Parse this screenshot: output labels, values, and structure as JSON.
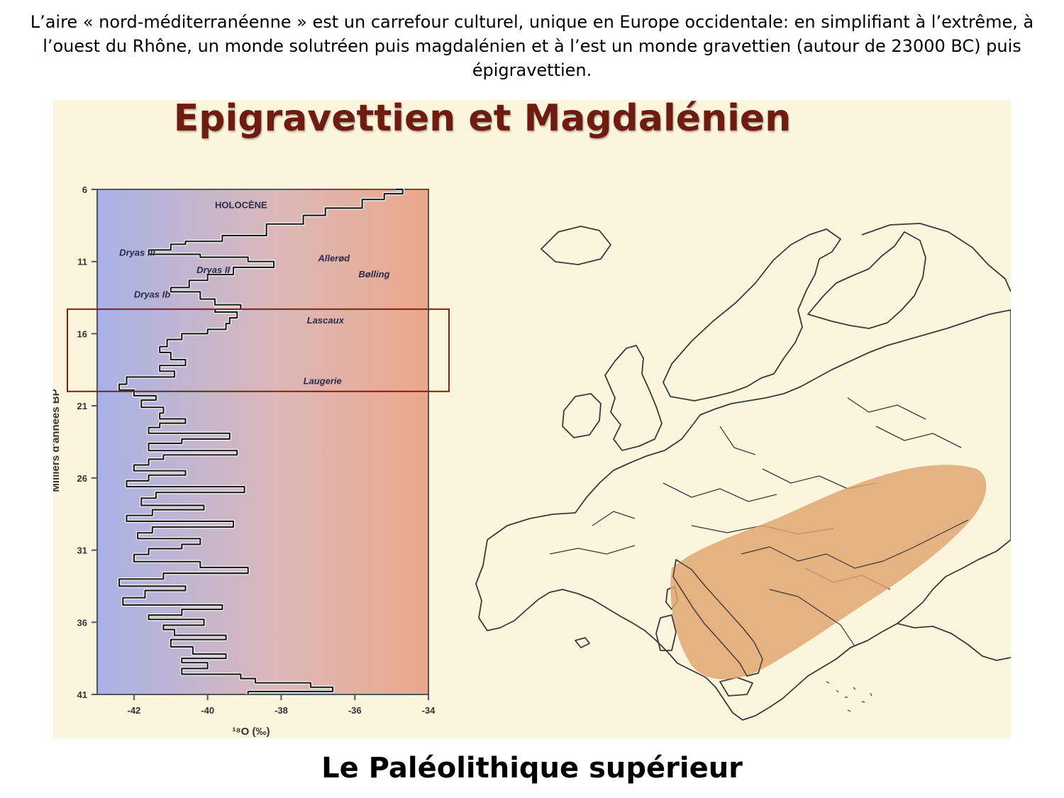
{
  "intro_text": "L’aire « nord-méditerranéenne » est un carrefour culturel, unique en Europe occidentale: en simplifiant à l’extrême, à l’ouest du Rhône, un monde solutréen puis magdalénien et à l’est un monde gravettien (autour de 23000 BC)  puis épigravettien.",
  "slide_title": "Epigravettien et Magdalénien",
  "caption": "Le Paléolithique supérieur",
  "colors": {
    "title": "#6e1c12",
    "zone": "#e0a36c",
    "cold": "#a8b2e8",
    "warm": "#eba88a",
    "slide_bg": "#faf5dc"
  },
  "chart_data": {
    "type": "line",
    "xlabel": "¹⁸O (‰)",
    "ylabel": "Milliers d'années BP",
    "x_ticks": [
      -42,
      -40,
      -38,
      -36,
      -34
    ],
    "y_ticks": [
      6,
      11,
      16,
      21,
      26,
      31,
      36,
      41
    ],
    "xlim": [
      -43,
      -34
    ],
    "ylim": [
      6,
      41
    ],
    "y_inverted": true,
    "annotations": [
      {
        "text": "HOLOCÈNE",
        "x": -39.8,
        "y": 7.3
      },
      {
        "text": "Dryas III",
        "x": -42.4,
        "y": 10.6
      },
      {
        "text": "Allerød",
        "x": -37.0,
        "y": 11.0
      },
      {
        "text": "Dryas II",
        "x": -40.3,
        "y": 11.8
      },
      {
        "text": "Bølling",
        "x": -35.9,
        "y": 12.1
      },
      {
        "text": "Dryas Ib",
        "x": -42.0,
        "y": 13.5
      },
      {
        "text": "Lascaux",
        "x": -37.3,
        "y": 15.3
      },
      {
        "text": "Laugerie",
        "x": -37.4,
        "y": 19.5
      }
    ],
    "highlight": {
      "y_from": 14.3,
      "y_to": 20.0
    },
    "series": [
      {
        "values_xy": [
          [
            -34.9,
            6.0
          ],
          [
            -34.7,
            6.3
          ],
          [
            -35.2,
            6.7
          ],
          [
            -35.8,
            7.3
          ],
          [
            -36.8,
            7.8
          ],
          [
            -37.4,
            8.4
          ],
          [
            -38.4,
            9.2
          ],
          [
            -39.6,
            9.6
          ],
          [
            -40.6,
            9.8
          ],
          [
            -41.0,
            10.2
          ],
          [
            -41.6,
            10.5
          ],
          [
            -40.2,
            10.7
          ],
          [
            -38.9,
            11.0
          ],
          [
            -38.2,
            11.4
          ],
          [
            -39.3,
            11.9
          ],
          [
            -40.0,
            12.3
          ],
          [
            -40.5,
            12.8
          ],
          [
            -41.0,
            13.1
          ],
          [
            -40.2,
            13.6
          ],
          [
            -39.8,
            14.0
          ],
          [
            -39.1,
            14.3
          ],
          [
            -39.8,
            14.5
          ],
          [
            -39.2,
            14.9
          ],
          [
            -39.4,
            15.3
          ],
          [
            -39.5,
            15.7
          ],
          [
            -40.0,
            16.0
          ],
          [
            -40.7,
            16.4
          ],
          [
            -41.1,
            16.9
          ],
          [
            -41.3,
            17.3
          ],
          [
            -41.0,
            17.8
          ],
          [
            -40.6,
            18.2
          ],
          [
            -41.3,
            18.6
          ],
          [
            -40.9,
            19.0
          ],
          [
            -42.2,
            19.5
          ],
          [
            -42.4,
            19.9
          ],
          [
            -42.0,
            20.3
          ],
          [
            -41.4,
            20.6
          ],
          [
            -41.8,
            21.1
          ],
          [
            -41.2,
            21.5
          ],
          [
            -41.3,
            21.9
          ],
          [
            -40.6,
            22.2
          ],
          [
            -41.3,
            22.5
          ],
          [
            -41.6,
            22.9
          ],
          [
            -39.4,
            23.3
          ],
          [
            -40.7,
            23.6
          ],
          [
            -41.6,
            24.1
          ],
          [
            -39.2,
            24.4
          ],
          [
            -41.2,
            24.7
          ],
          [
            -41.6,
            25.1
          ],
          [
            -42.0,
            25.5
          ],
          [
            -40.6,
            25.8
          ],
          [
            -41.6,
            26.2
          ],
          [
            -42.2,
            26.6
          ],
          [
            -39.0,
            27.0
          ],
          [
            -41.4,
            27.4
          ],
          [
            -41.8,
            27.9
          ],
          [
            -40.1,
            28.2
          ],
          [
            -41.5,
            28.6
          ],
          [
            -42.2,
            29.0
          ],
          [
            -39.3,
            29.4
          ],
          [
            -41.5,
            29.8
          ],
          [
            -41.9,
            30.2
          ],
          [
            -40.2,
            30.6
          ],
          [
            -40.7,
            30.9
          ],
          [
            -41.6,
            31.3
          ],
          [
            -42.0,
            31.8
          ],
          [
            -40.2,
            32.2
          ],
          [
            -38.9,
            32.6
          ],
          [
            -41.2,
            33.0
          ],
          [
            -42.4,
            33.5
          ],
          [
            -40.6,
            33.8
          ],
          [
            -41.7,
            34.3
          ],
          [
            -42.3,
            34.8
          ],
          [
            -39.6,
            35.1
          ],
          [
            -40.7,
            35.5
          ],
          [
            -41.6,
            35.8
          ],
          [
            -40.1,
            36.2
          ],
          [
            -41.2,
            36.5
          ],
          [
            -40.9,
            36.9
          ],
          [
            -39.5,
            37.2
          ],
          [
            -41.0,
            37.7
          ],
          [
            -40.4,
            38.2
          ],
          [
            -39.5,
            38.5
          ],
          [
            -40.7,
            38.8
          ],
          [
            -40.0,
            39.2
          ],
          [
            -40.7,
            39.6
          ],
          [
            -39.1,
            39.9
          ],
          [
            -38.7,
            40.2
          ],
          [
            -37.2,
            40.5
          ],
          [
            -36.6,
            40.8
          ],
          [
            -38.9,
            41.0
          ]
        ]
      }
    ]
  }
}
